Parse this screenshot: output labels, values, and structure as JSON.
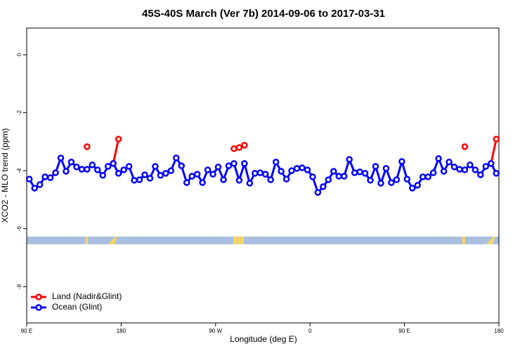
{
  "chart_data": {
    "type": "line",
    "title": "45S-40S March (Ver 7b)   2014-09-06 to 2017-03-31",
    "x_label": "Longitude (deg E)",
    "y_label": "XCO2 - MLO trend (ppm)",
    "xlim": [
      90,
      540
    ],
    "ylim": [
      -9.25,
      0.92
    ],
    "xticks": [
      {
        "value": 90,
        "label": "90 E"
      },
      {
        "value": 180,
        "label": "180"
      },
      {
        "value": 270,
        "label": "90 W"
      },
      {
        "value": 360,
        "label": "0"
      },
      {
        "value": 450,
        "label": "90 E"
      },
      {
        "value": 540,
        "label": "180"
      }
    ],
    "yticks": [
      0,
      -2,
      -4,
      -6,
      -8
    ],
    "legend": "bottomleft",
    "series": [
      {
        "name": "Land (Nadir&Glint)",
        "color": "#ff0000",
        "x": [
          147.5,
          172.5,
          177.5,
          287.5,
          292.5,
          297.5,
          507.5,
          532.5,
          537.5
        ],
        "values": [
          -3.17,
          -3.75,
          -2.91,
          -3.24,
          -3.2,
          -3.12,
          -3.17,
          -3.75,
          -2.91
        ]
      },
      {
        "name": "Ocean (Glint)",
        "color": "#0000ff",
        "x": [
          92.5,
          97.5,
          102.5,
          107.5,
          112.5,
          117.5,
          122.5,
          127.5,
          132.5,
          137.5,
          142.5,
          147.5,
          152.5,
          157.5,
          162.5,
          167.5,
          172.5,
          177.5,
          182.5,
          187.5,
          192.5,
          197.5,
          202.5,
          207.5,
          212.5,
          217.5,
          222.5,
          227.5,
          232.5,
          237.5,
          242.5,
          247.5,
          252.5,
          257.5,
          262.5,
          267.5,
          272.5,
          277.5,
          282.5,
          287.5,
          292.5,
          297.5,
          302.5,
          307.5,
          312.5,
          317.5,
          322.5,
          327.5,
          332.5,
          337.5,
          342.5,
          347.5,
          352.5,
          357.5,
          362.5,
          367.5,
          372.5,
          377.5,
          382.5,
          387.5,
          392.5,
          397.5,
          402.5,
          407.5,
          412.5,
          417.5,
          422.5,
          427.5,
          432.5,
          437.5,
          442.5,
          447.5,
          452.5,
          457.5,
          462.5,
          467.5,
          472.5,
          477.5,
          482.5,
          487.5,
          492.5,
          497.5,
          502.5,
          507.5,
          512.5,
          517.5,
          522.5,
          527.5,
          532.5,
          537.5
        ],
        "values": [
          -4.29,
          -4.6,
          -4.48,
          -4.21,
          -4.24,
          -4.07,
          -3.56,
          -4.02,
          -3.7,
          -3.87,
          -3.95,
          -3.95,
          -3.8,
          -3.97,
          -4.16,
          -3.85,
          -3.75,
          -4.09,
          -3.97,
          -3.85,
          -4.33,
          -4.31,
          -4.14,
          -4.26,
          -3.85,
          -4.16,
          -4.09,
          -4.0,
          -3.56,
          -3.83,
          -4.41,
          -4.19,
          -4.12,
          -4.41,
          -3.97,
          -4.12,
          -3.87,
          -4.31,
          -3.83,
          -3.75,
          -4.33,
          -3.75,
          -4.43,
          -4.09,
          -4.07,
          -4.12,
          -4.31,
          -3.7,
          -4.02,
          -4.29,
          -4.0,
          -3.92,
          -3.9,
          -3.97,
          -4.21,
          -4.75,
          -4.55,
          -4.31,
          -4.02,
          -4.19,
          -4.19,
          -3.61,
          -4.07,
          -4.04,
          -4.09,
          -4.33,
          -3.85,
          -4.43,
          -3.92,
          -4.41,
          -4.31,
          -3.68,
          -4.29,
          -4.6,
          -4.5,
          -4.21,
          -4.21,
          -4.07,
          -3.58,
          -4.02,
          -3.7,
          -3.87,
          -3.95,
          -3.97,
          -3.8,
          -3.97,
          -4.14,
          -3.85,
          -3.75,
          -4.09
        ]
      }
    ]
  }
}
